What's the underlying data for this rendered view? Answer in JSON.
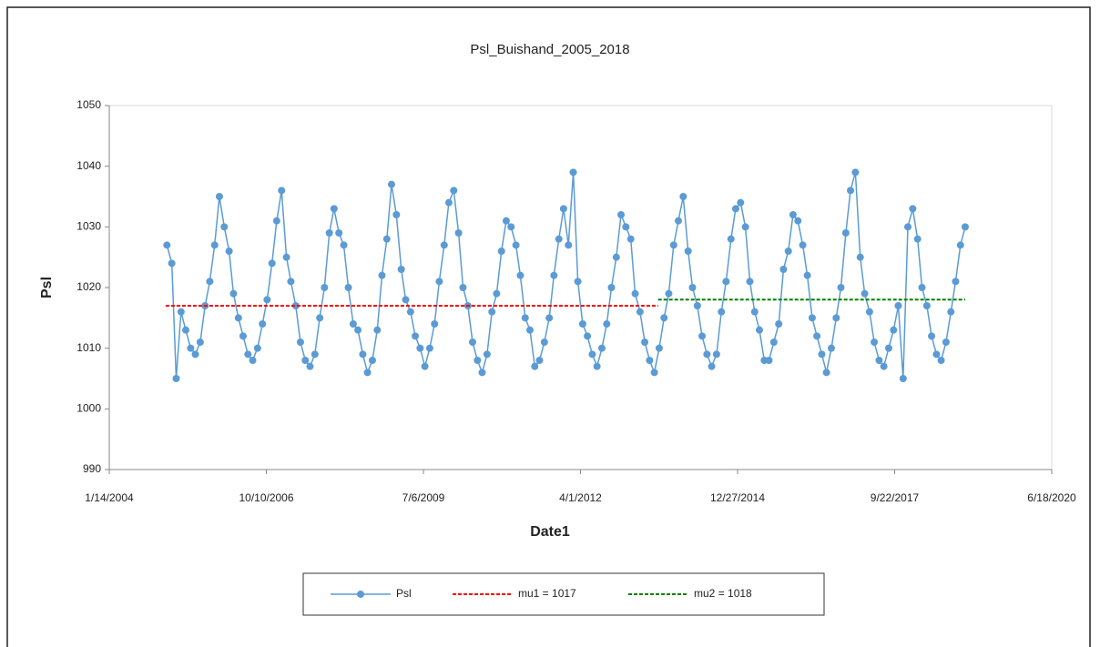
{
  "chart_data": {
    "type": "line",
    "title": "Psl_Buishand_2005_2018",
    "x_label": "Date1",
    "y_label": "Psl",
    "xlim": [
      "1/14/2004",
      "6/18/2020"
    ],
    "xticks": [
      "1/14/2004",
      "10/10/2006",
      "7/6/2009",
      "4/1/2012",
      "12/27/2014",
      "9/22/2017",
      "6/18/2020"
    ],
    "ylim": [
      990,
      1050
    ],
    "yticks": [
      990,
      1000,
      1010,
      1020,
      1030,
      1040,
      1050
    ],
    "grid": false,
    "legend": "bottom",
    "series": [
      {
        "name": "Psl",
        "color": "#5b9bd5",
        "style": "solid-marker",
        "x": [
          "1/15/2005",
          "2/15/2005",
          "3/15/2005",
          "4/15/2005",
          "5/15/2005",
          "6/15/2005",
          "7/15/2005",
          "8/15/2005",
          "9/15/2005",
          "10/15/2005",
          "11/15/2005",
          "12/15/2005",
          "1/15/2006",
          "2/15/2006",
          "3/15/2006",
          "4/15/2006",
          "5/15/2006",
          "6/15/2006",
          "7/15/2006",
          "8/15/2006",
          "9/15/2006",
          "10/15/2006",
          "11/15/2006",
          "12/15/2006",
          "1/15/2007",
          "2/15/2007",
          "3/15/2007",
          "4/15/2007",
          "5/15/2007",
          "6/15/2007",
          "7/15/2007",
          "8/15/2007",
          "9/15/2007",
          "10/15/2007",
          "11/15/2007",
          "12/15/2007",
          "1/15/2008",
          "2/15/2008",
          "3/15/2008",
          "4/15/2008",
          "5/15/2008",
          "6/15/2008",
          "7/15/2008",
          "8/15/2008",
          "9/15/2008",
          "10/15/2008",
          "11/15/2008",
          "12/15/2008",
          "1/15/2009",
          "2/15/2009",
          "3/15/2009",
          "4/15/2009",
          "5/15/2009",
          "6/15/2009",
          "7/15/2009",
          "8/15/2009",
          "9/15/2009",
          "10/15/2009",
          "11/15/2009",
          "12/15/2009",
          "1/15/2010",
          "2/15/2010",
          "3/15/2010",
          "4/15/2010",
          "5/15/2010",
          "6/15/2010",
          "7/15/2010",
          "8/15/2010",
          "9/15/2010",
          "10/15/2010",
          "11/15/2010",
          "12/15/2010",
          "1/15/2011",
          "2/15/2011",
          "3/15/2011",
          "4/15/2011",
          "5/15/2011",
          "6/15/2011",
          "7/15/2011",
          "8/15/2011",
          "9/15/2011",
          "10/15/2011",
          "11/15/2011",
          "12/15/2011",
          "1/15/2012",
          "2/15/2012",
          "3/15/2012",
          "4/15/2012",
          "5/15/2012",
          "6/15/2012",
          "7/15/2012",
          "8/15/2012",
          "9/15/2012",
          "10/15/2012",
          "11/15/2012",
          "12/15/2012",
          "1/15/2013",
          "2/15/2013",
          "3/15/2013",
          "4/15/2013",
          "5/15/2013",
          "6/15/2013",
          "7/15/2013",
          "8/15/2013",
          "9/15/2013",
          "10/15/2013",
          "11/15/2013",
          "12/15/2013",
          "1/15/2014",
          "2/15/2014",
          "3/15/2014",
          "4/15/2014",
          "5/15/2014",
          "6/15/2014",
          "7/15/2014",
          "8/15/2014",
          "9/15/2014",
          "10/15/2014",
          "11/15/2014",
          "12/15/2014",
          "1/15/2015",
          "2/15/2015",
          "3/15/2015",
          "4/15/2015",
          "5/15/2015",
          "6/15/2015",
          "7/15/2015",
          "8/15/2015",
          "9/15/2015",
          "10/15/2015",
          "11/15/2015",
          "12/15/2015",
          "1/15/2016",
          "2/15/2016",
          "3/15/2016",
          "4/15/2016",
          "5/15/2016",
          "6/15/2016",
          "7/15/2016",
          "8/15/2016",
          "9/15/2016",
          "10/15/2016",
          "11/15/2016",
          "12/15/2016",
          "1/15/2017",
          "2/15/2017",
          "3/15/2017",
          "4/15/2017",
          "5/15/2017",
          "6/15/2017",
          "7/15/2017",
          "8/15/2017",
          "9/15/2017",
          "10/15/2017",
          "11/15/2017",
          "12/15/2017",
          "1/15/2018",
          "2/15/2018",
          "3/15/2018",
          "4/15/2018",
          "5/15/2018",
          "6/15/2018",
          "7/15/2018",
          "8/15/2018",
          "9/15/2018",
          "10/15/2018",
          "11/15/2018",
          "12/15/2018"
        ],
        "values": [
          1027,
          1024,
          1005,
          1016,
          1013,
          1010,
          1009,
          1011,
          1017,
          1021,
          1027,
          1035,
          1030,
          1026,
          1019,
          1015,
          1012,
          1009,
          1008,
          1010,
          1014,
          1018,
          1024,
          1031,
          1036,
          1025,
          1021,
          1017,
          1011,
          1008,
          1007,
          1009,
          1015,
          1020,
          1029,
          1033,
          1029,
          1027,
          1020,
          1014,
          1013,
          1009,
          1006,
          1008,
          1013,
          1022,
          1028,
          1037,
          1032,
          1023,
          1018,
          1016,
          1012,
          1010,
          1007,
          1010,
          1014,
          1021,
          1027,
          1034,
          1036,
          1029,
          1020,
          1017,
          1011,
          1008,
          1006,
          1009,
          1016,
          1019,
          1026,
          1031,
          1030,
          1027,
          1022,
          1015,
          1013,
          1007,
          1008,
          1011,
          1015,
          1022,
          1028,
          1033,
          1027,
          1039,
          1021,
          1014,
          1012,
          1009,
          1007,
          1010,
          1014,
          1020,
          1025,
          1032,
          1030,
          1028,
          1019,
          1016,
          1011,
          1008,
          1006,
          1010,
          1015,
          1019,
          1027,
          1031,
          1035,
          1026,
          1020,
          1017,
          1012,
          1009,
          1007,
          1009,
          1016,
          1021,
          1028,
          1033,
          1034,
          1030,
          1021,
          1016,
          1013,
          1008,
          1008,
          1011,
          1014,
          1023,
          1026,
          1032,
          1031,
          1027,
          1022,
          1015,
          1012,
          1009,
          1006,
          1010,
          1015,
          1020,
          1029,
          1036,
          1039,
          1025,
          1019,
          1016,
          1011,
          1008,
          1007,
          1010,
          1013,
          1017,
          1005,
          1030,
          1033,
          1028,
          1020,
          1017,
          1012,
          1009,
          1008,
          1011,
          1016,
          1021,
          1027,
          1030
        ]
      },
      {
        "name": "mu1 = 1017",
        "color": "#ff0000",
        "style": "dashed",
        "x": [
          "1/7/2005",
          "8/8/2013"
        ],
        "values": [
          1017,
          1017
        ]
      },
      {
        "name": "mu2 = 1018",
        "color": "#008000",
        "style": "dashed",
        "x": [
          "8/8/2013",
          "12/15/2018"
        ],
        "values": [
          1018,
          1018
        ]
      }
    ]
  }
}
